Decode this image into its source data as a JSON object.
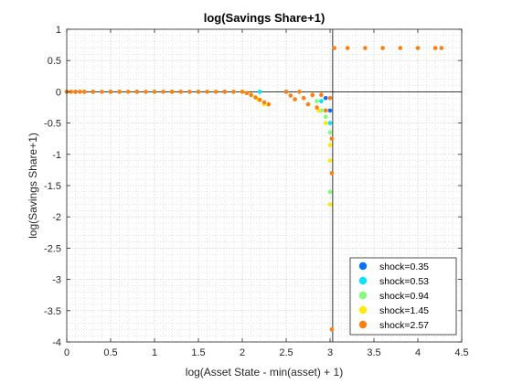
{
  "chart_data": {
    "type": "scatter",
    "title": "log(Savings Share+1)",
    "xlabel": "log(Asset State - min(asset) + 1)",
    "ylabel": "log(Savings Share+1)",
    "xlim": [
      0,
      4.5
    ],
    "ylim": [
      -4,
      1
    ],
    "xticks": [
      "0",
      "0.5",
      "1",
      "1.5",
      "2",
      "2.5",
      "3",
      "3.5",
      "4",
      "4.5"
    ],
    "yticks": [
      "1",
      "0.5",
      "0",
      "-0.5",
      "-1",
      "-1.5",
      "-2",
      "-2.5",
      "-3",
      "-3.5",
      "-4"
    ],
    "grid": "minor-dotted",
    "reference_lines": {
      "x": 3.03,
      "y": 0
    },
    "legend": {
      "location": "bottom-right",
      "entries": [
        "shock=0.35",
        "shock=0.53",
        "shock=0.94",
        "shock=1.45",
        "shock=2.57"
      ]
    },
    "series": [
      {
        "name": "shock=0.35",
        "color": "#0072ff",
        "x": [
          0.0,
          0.1,
          0.2,
          0.3,
          0.5,
          0.8,
          1.2,
          1.8,
          2.5,
          2.95,
          3.0
        ],
        "y": [
          0,
          0,
          0,
          0,
          0,
          0,
          0,
          0,
          0,
          -0.1,
          -0.3
        ]
      },
      {
        "name": "shock=0.53",
        "color": "#00e5ff",
        "x": [
          0.0,
          0.1,
          0.3,
          0.6,
          1.0,
          1.5,
          2.2,
          2.9,
          2.95,
          3.0
        ],
        "y": [
          0,
          0,
          0,
          0,
          0,
          0,
          0,
          -0.15,
          -0.3,
          -0.5
        ]
      },
      {
        "name": "shock=0.94",
        "color": "#7dff7a",
        "x": [
          0.0,
          0.2,
          0.6,
          1.2,
          2.0,
          2.85,
          2.9,
          2.95,
          3.0,
          3.0
        ],
        "y": [
          0,
          0,
          0,
          0,
          0,
          -0.15,
          -0.3,
          -0.4,
          -0.65,
          -1.6
        ]
      },
      {
        "name": "shock=1.45",
        "color": "#ffea00",
        "x": [
          0.0,
          0.2,
          0.6,
          1.2,
          2.0,
          2.1,
          2.18,
          2.25,
          2.8,
          2.87,
          2.95,
          3.0,
          3.0,
          3.0
        ],
        "y": [
          0,
          0,
          0,
          0,
          0,
          -0.05,
          -0.12,
          -0.2,
          -0.05,
          -0.3,
          -0.5,
          -0.85,
          -1.1,
          -1.8
        ]
      },
      {
        "name": "shock=2.57",
        "color": "#ff7f0e",
        "x": [
          0.0,
          0.05,
          0.1,
          0.15,
          0.2,
          0.3,
          0.4,
          0.5,
          0.6,
          0.7,
          0.8,
          0.9,
          1.0,
          1.1,
          1.2,
          1.3,
          1.4,
          1.5,
          1.6,
          1.7,
          1.8,
          1.9,
          2.0,
          2.05,
          2.1,
          2.15,
          2.2,
          2.25,
          2.3,
          2.5,
          2.55,
          2.6,
          2.65,
          2.7,
          2.75,
          2.8,
          2.85,
          2.9,
          2.95,
          3.0,
          3.02,
          3.02,
          3.02,
          3.05,
          3.2,
          3.4,
          3.6,
          3.8,
          4.0,
          4.2,
          4.27
        ],
        "y": [
          0,
          0,
          0,
          0,
          0,
          0,
          0,
          0,
          0,
          0,
          0,
          0,
          0,
          0,
          0,
          0,
          0,
          0,
          0,
          0,
          0,
          0,
          0,
          -0.02,
          -0.05,
          -0.09,
          -0.13,
          -0.17,
          -0.2,
          0,
          -0.06,
          -0.12,
          0,
          -0.1,
          -0.2,
          -0.05,
          -0.25,
          -0.05,
          -0.3,
          -0.1,
          -0.75,
          -1.3,
          -3.8,
          0.7,
          0.7,
          0.7,
          0.7,
          0.7,
          0.7,
          0.7,
          0.7
        ]
      }
    ]
  }
}
